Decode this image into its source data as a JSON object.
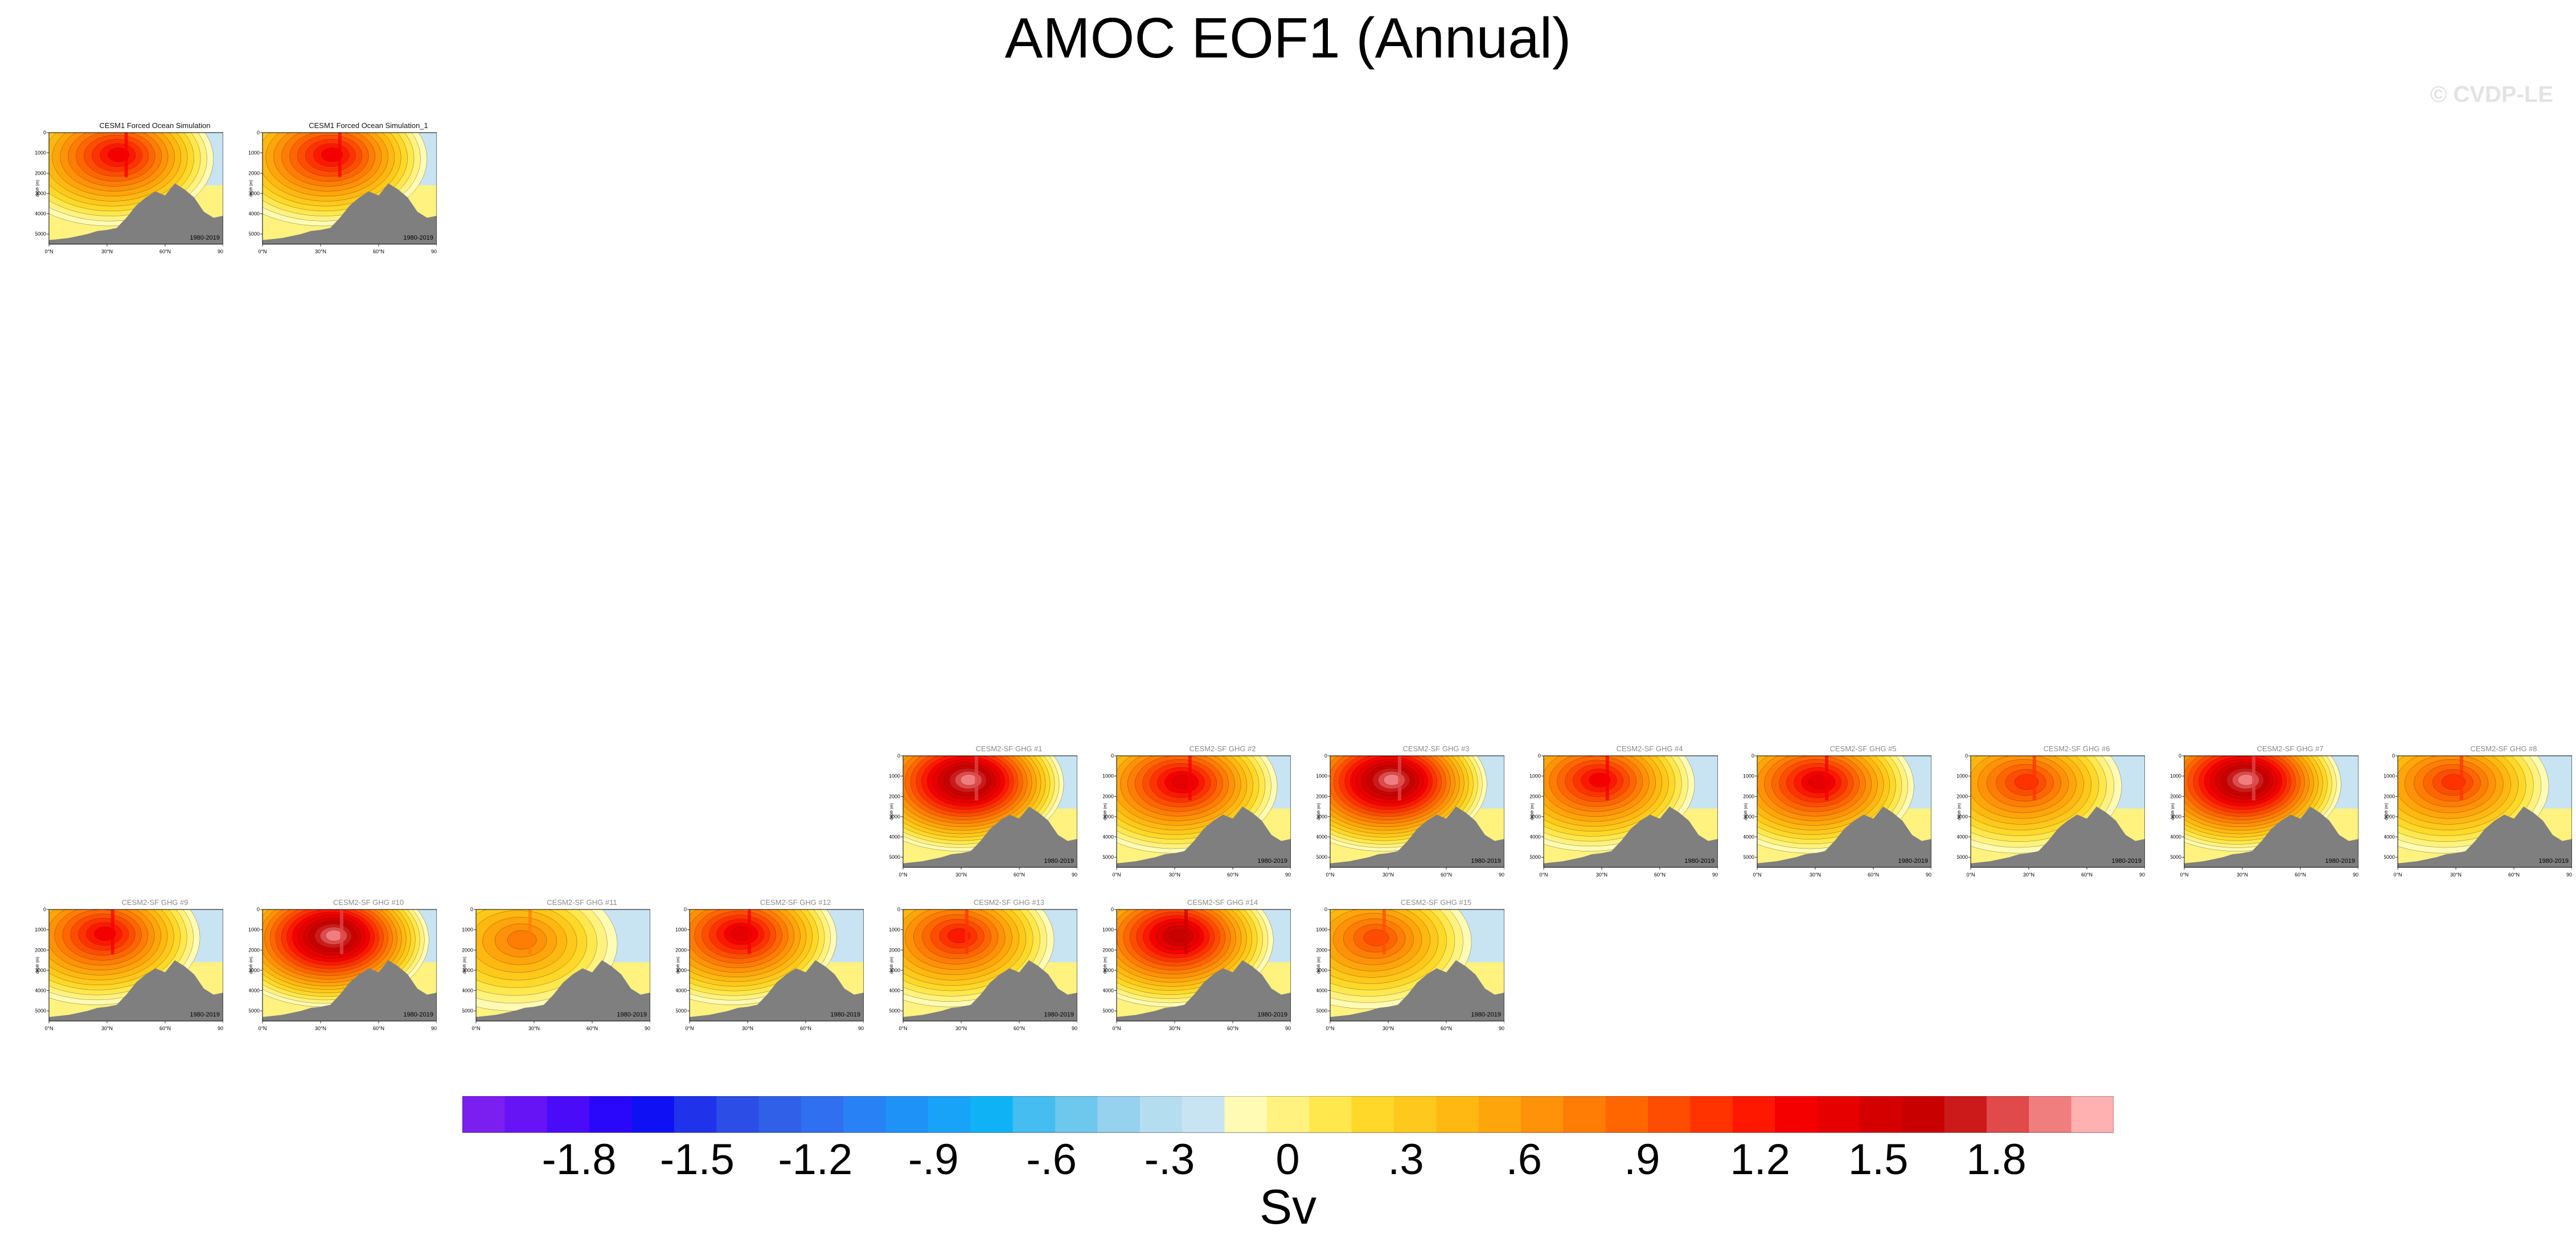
{
  "title": "AMOC EOF1 (Annual)",
  "watermark": "© CVDP-LE",
  "chart_data": {
    "type": "heatmap",
    "title": "AMOC EOF1 (Annual)",
    "period": "1980-2019",
    "xlabel": "",
    "ylabel": "depth (m)",
    "x_ticks": [
      "0°N",
      "30°N",
      "60°N",
      "90°N"
    ],
    "y_ticks": [
      "0",
      "1000",
      "2000",
      "3000",
      "4000",
      "5000"
    ],
    "xlim": [
      0,
      90
    ],
    "ylim": [
      5500,
      0
    ],
    "colorbar": {
      "label": "Sv",
      "levels": [
        -1.8,
        -1.5,
        -1.2,
        -0.9,
        -0.6,
        -0.3,
        0,
        0.3,
        0.6,
        0.9,
        1.2,
        1.5,
        1.8
      ],
      "tick_labels": [
        "-1.8",
        "-1.5",
        "-1.2",
        "-.9",
        "-.6",
        "-.3",
        "0",
        ".3",
        ".6",
        ".9",
        "1.2",
        "1.5",
        "1.8"
      ],
      "colors": [
        "#7b1ff0",
        "#6614f5",
        "#4a0cf8",
        "#2a06fb",
        "#1010f5",
        "#2032ea",
        "#2c4de6",
        "#3060e8",
        "#2f6ff0",
        "#2882f5",
        "#1f92f7",
        "#18a2f8",
        "#10b2f6",
        "#45bdf0",
        "#6ec7ed",
        "#96d1ed",
        "#b5ddf0",
        "#c8e4f3",
        "#fffbb4",
        "#fff27f",
        "#ffe84e",
        "#ffd82a",
        "#ffc81c",
        "#ffb812",
        "#ffa50c",
        "#ff9208",
        "#ff7d04",
        "#ff6600",
        "#ff4d00",
        "#ff3300",
        "#ff1800",
        "#f50000",
        "#e60000",
        "#d40000",
        "#c80000",
        "#cc1a1a",
        "#e04a4a",
        "#f07e7e",
        "#ffb0b0"
      ]
    },
    "series": [
      {
        "name": "CESM1 Forced Ocean Simulation",
        "max": 1.3,
        "min": -0.6,
        "peak_lat": 37,
        "peak_depth": 900
      },
      {
        "name": "CESM1 Forced Ocean Simulation_1",
        "max": 1.3,
        "min": -0.6,
        "peak_lat": 37,
        "peak_depth": 900
      },
      {
        "name": "CESM2-SF GHG #1",
        "max": 1.9,
        "min": -0.5,
        "peak_lat": 35,
        "peak_depth": 1000
      },
      {
        "name": "CESM2-SF GHG #2",
        "max": 1.4,
        "min": -0.3,
        "peak_lat": 35,
        "peak_depth": 1100
      },
      {
        "name": "CESM2-SF GHG #3",
        "max": 1.9,
        "min": -0.3,
        "peak_lat": 33,
        "peak_depth": 1000
      },
      {
        "name": "CESM2-SF GHG #4",
        "max": 1.3,
        "min": -0.4,
        "peak_lat": 30,
        "peak_depth": 1000
      },
      {
        "name": "CESM2-SF GHG #5",
        "max": 1.4,
        "min": -0.3,
        "peak_lat": 33,
        "peak_depth": 1100
      },
      {
        "name": "CESM2-SF GHG #6",
        "max": 1.1,
        "min": -0.3,
        "peak_lat": 30,
        "peak_depth": 1100
      },
      {
        "name": "CESM2-SF GHG #7",
        "max": 1.9,
        "min": -0.3,
        "peak_lat": 33,
        "peak_depth": 1000
      },
      {
        "name": "CESM2-SF GHG #8",
        "max": 1.1,
        "min": -0.3,
        "peak_lat": 30,
        "peak_depth": 1100
      },
      {
        "name": "CESM2-SF GHG #9",
        "max": 1.3,
        "min": -0.4,
        "peak_lat": 30,
        "peak_depth": 1000
      },
      {
        "name": "CESM2-SF GHG #10",
        "max": 1.9,
        "min": -0.3,
        "peak_lat": 38,
        "peak_depth": 1100
      },
      {
        "name": "CESM2-SF GHG #11",
        "max": 0.8,
        "min": -0.2,
        "peak_lat": 25,
        "peak_depth": 1300
      },
      {
        "name": "CESM2-SF GHG #12",
        "max": 1.4,
        "min": -0.3,
        "peak_lat": 28,
        "peak_depth": 1000
      },
      {
        "name": "CESM2-SF GHG #13",
        "max": 1.2,
        "min": -0.3,
        "peak_lat": 30,
        "peak_depth": 1100
      },
      {
        "name": "CESM2-SF GHG #14",
        "max": 1.6,
        "min": -0.3,
        "peak_lat": 33,
        "peak_depth": 1100
      },
      {
        "name": "CESM2-SF GHG #15",
        "max": 1.0,
        "min": -0.3,
        "peak_lat": 25,
        "peak_depth": 1200
      }
    ]
  }
}
